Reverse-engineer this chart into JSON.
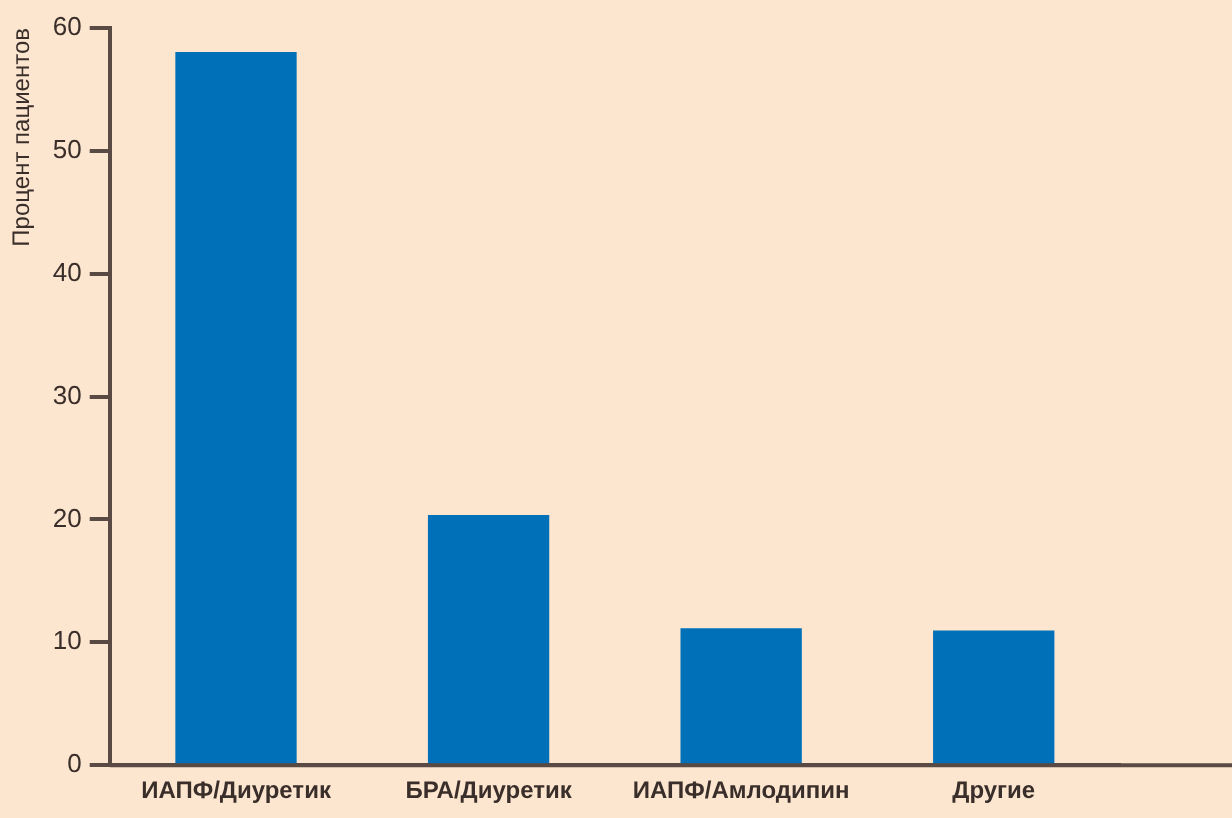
{
  "chart_data": {
    "type": "bar",
    "ylabel": "Процент пациентов",
    "categories": [
      "ИАПФ/Диуретик",
      "БРА/Диуретик",
      "ИАПФ/Амлодипин",
      "Другие"
    ],
    "values": [
      58,
      20.3,
      11.1,
      10.9
    ],
    "color": "#0070b8",
    "ylim": [
      0,
      60
    ],
    "yticks": [
      0,
      10,
      20,
      30,
      40,
      50,
      60
    ],
    "grid": false,
    "legend": false
  }
}
